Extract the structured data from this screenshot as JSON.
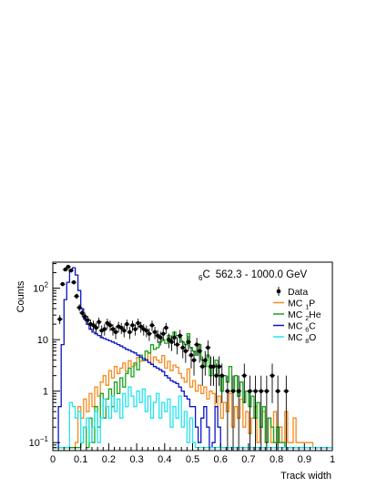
{
  "chart_data": {
    "type": "histogram",
    "title": {
      "z": "6",
      "element": "C",
      "range": "562.3 - 1000.0 GeV"
    },
    "xlabel": "Track width",
    "ylabel": "Counts",
    "xlim": [
      0,
      1
    ],
    "ylim": [
      0.07,
      320
    ],
    "yscale": "log",
    "x_ticks": [
      "0",
      "0.1",
      "0.2",
      "0.3",
      "0.4",
      "0.5",
      "0.6",
      "0.7",
      "0.8",
      "0.9",
      "1"
    ],
    "y_ticks": [
      {
        "value": 0.1,
        "base": "10",
        "exp": "−1"
      },
      {
        "value": 1,
        "base": "1",
        "exp": ""
      },
      {
        "value": 10,
        "base": "10",
        "exp": ""
      },
      {
        "value": 100,
        "base": "10",
        "exp": "2"
      }
    ],
    "legend": {
      "position": "right",
      "entries": [
        {
          "label": "Data",
          "sub": "",
          "el": "",
          "style": "marker"
        },
        {
          "label": "MC ",
          "sub": "1",
          "el": "P",
          "style": "line",
          "color": "#f58a1f"
        },
        {
          "label": "MC ",
          "sub": "2",
          "el": "He",
          "style": "line",
          "color": "#1aa31a"
        },
        {
          "label": "MC ",
          "sub": "6",
          "el": "C",
          "style": "line",
          "color": "#0a14c8"
        },
        {
          "label": "MC ",
          "sub": "8",
          "el": "O",
          "style": "line",
          "color": "#22e5f0"
        }
      ]
    },
    "bin_width": 0.01,
    "series": [
      {
        "name": "Data",
        "kind": "points",
        "color": "#000000",
        "x": [
          0.025,
          0.035,
          0.045,
          0.055,
          0.065,
          0.075,
          0.085,
          0.095,
          0.105,
          0.115,
          0.125,
          0.135,
          0.145,
          0.155,
          0.165,
          0.175,
          0.185,
          0.195,
          0.205,
          0.215,
          0.225,
          0.235,
          0.245,
          0.255,
          0.265,
          0.275,
          0.285,
          0.295,
          0.305,
          0.315,
          0.325,
          0.335,
          0.345,
          0.355,
          0.365,
          0.375,
          0.385,
          0.395,
          0.405,
          0.415,
          0.425,
          0.435,
          0.445,
          0.455,
          0.465,
          0.475,
          0.485,
          0.495,
          0.505,
          0.515,
          0.525,
          0.535,
          0.545,
          0.555,
          0.565,
          0.575,
          0.585,
          0.595,
          0.605,
          0.625,
          0.645,
          0.665,
          0.685,
          0.705,
          0.725,
          0.745,
          0.765,
          0.785,
          0.805,
          0.835
        ],
        "y": [
          25,
          120,
          230,
          260,
          220,
          130,
          70,
          42,
          33,
          28,
          24,
          20,
          19,
          17,
          22,
          15,
          16,
          21,
          19,
          16,
          14,
          18,
          17,
          15,
          20,
          14,
          19,
          16,
          21,
          18,
          16,
          15,
          13,
          19,
          14,
          12,
          11,
          13,
          17,
          10,
          9,
          11,
          8,
          12,
          7,
          6,
          9,
          5,
          4,
          8,
          6,
          3,
          4,
          7,
          3,
          3,
          2,
          3,
          2,
          1,
          1,
          1,
          2,
          1,
          1,
          1,
          1,
          2,
          1,
          1
        ]
      },
      {
        "name": "MC P",
        "kind": "step",
        "color": "#f58a1f",
        "x_start": 0.0,
        "values": [
          0.08,
          0.08,
          0.08,
          0.08,
          0.08,
          0.08,
          0.08,
          0.08,
          0.1,
          0.5,
          0.3,
          0.7,
          0.4,
          0.9,
          0.5,
          1.2,
          0.8,
          1.5,
          2,
          1.3,
          2.5,
          1.8,
          3,
          2.2,
          2.8,
          3.5,
          2.4,
          3.9,
          3,
          3.2,
          4.5,
          3.8,
          3.9,
          4.2,
          5.5,
          3.4,
          4.6,
          4,
          3.6,
          4.9,
          2.8,
          3.8,
          2.5,
          3.2,
          2.9,
          2.2,
          1.8,
          1.5,
          2.7,
          1.2,
          1.6,
          1,
          1.3,
          0.9,
          1.2,
          0.7,
          1,
          0.9,
          0.5,
          0.8,
          0.3,
          0.6,
          0.4,
          0.9,
          0.2,
          0.5,
          0.3,
          0.7,
          0.2,
          0.4,
          0.15,
          0.3,
          0.5,
          0.1,
          0.2,
          0.4,
          0.1,
          0.3,
          0.1,
          0.4,
          0.1,
          0.2,
          0.1,
          0.4,
          0.1,
          0.1,
          0.3,
          0.1,
          0.1,
          0.1,
          0.1,
          0.1,
          0.1,
          0.08,
          0.08,
          0.08,
          0.08,
          0.08,
          0.08,
          0.08
        ]
      },
      {
        "name": "MC He",
        "kind": "step",
        "color": "#1aa31a",
        "x_start": 0.0,
        "values": [
          0.08,
          0.08,
          0.08,
          0.08,
          0.08,
          0.08,
          0.08,
          0.08,
          0.08,
          0.08,
          0.1,
          0.2,
          0.08,
          0.3,
          0.1,
          0.5,
          0.2,
          0.9,
          0.3,
          0.7,
          1.1,
          0.5,
          1.5,
          0.9,
          1.8,
          1.2,
          2.2,
          2.8,
          1.9,
          3.5,
          2.6,
          5,
          4,
          6,
          5.5,
          8,
          6.5,
          7,
          9,
          10,
          8.5,
          12,
          10,
          14,
          12,
          11,
          9,
          8,
          13,
          7,
          6,
          5,
          8,
          4,
          3,
          5,
          2,
          3,
          4,
          2,
          1,
          2,
          1.5,
          3,
          1,
          2,
          0.8,
          1.5,
          0.6,
          1,
          0.5,
          0.8,
          0.3,
          0.6,
          0.2,
          0.5,
          0.1,
          0.3,
          0.2,
          0.1,
          0.2,
          0.1,
          0.1,
          0.08,
          0.08,
          0.08,
          0.08,
          0.08,
          0.08,
          0.08,
          0.08,
          0.08,
          0.08,
          0.08,
          0.08,
          0.08,
          0.08,
          0.08,
          0.08,
          0.08
        ]
      },
      {
        "name": "MC C",
        "kind": "step",
        "color": "#0a14c8",
        "x_start": 0.0,
        "values": [
          0.08,
          0.08,
          0.5,
          8,
          60,
          130,
          230,
          250,
          180,
          90,
          40,
          25,
          20,
          16,
          14,
          13,
          12,
          11,
          10.5,
          10,
          9.5,
          9,
          8.5,
          8,
          7.5,
          7,
          6.5,
          6.2,
          5.8,
          5.5,
          5,
          4.6,
          4.3,
          4,
          3.6,
          3.3,
          3,
          2.8,
          2.6,
          2.4,
          2,
          1.8,
          1.6,
          1.5,
          1.4,
          1.2,
          1,
          0.8,
          0.7,
          0.5,
          0.5,
          0.2,
          0.1,
          0.3,
          0.5,
          0.2,
          0.08,
          0.1,
          0.5,
          0.2,
          0.08,
          0.08,
          0.08,
          0.08,
          0.08,
          0.08,
          0.08,
          0.08,
          0.08,
          0.08,
          0.08,
          0.08,
          0.08,
          0.08,
          0.08,
          0.08,
          0.08,
          0.08,
          0.08,
          0.08,
          0.08,
          0.08,
          0.08,
          0.08,
          0.08,
          0.08,
          0.08,
          0.08,
          0.08,
          0.08,
          0.08,
          0.08,
          0.08,
          0.08,
          0.08,
          0.08,
          0.08,
          0.08,
          0.08,
          0.08
        ]
      },
      {
        "name": "MC O",
        "kind": "step",
        "color": "#22e5f0",
        "x_start": 0.0,
        "values": [
          0.08,
          0.08,
          0.08,
          0.08,
          0.08,
          0.08,
          0.6,
          0.5,
          0.3,
          0.4,
          0.1,
          0.2,
          0.3,
          0.1,
          0.2,
          0.4,
          0.1,
          0.3,
          0.7,
          0.5,
          0.3,
          0.8,
          0.4,
          0.7,
          0.3,
          0.9,
          0.5,
          1.2,
          0.8,
          0.5,
          1,
          0.6,
          1.1,
          0.4,
          0.8,
          0.3,
          0.6,
          0.9,
          0.3,
          0.6,
          0.4,
          0.7,
          0.2,
          0.5,
          0.3,
          0.8,
          0.2,
          0.4,
          0.1,
          0.3,
          0.1,
          0.08,
          0.08,
          0.08,
          0.08,
          0.08,
          0.08,
          0.08,
          0.08,
          0.08,
          0.08,
          0.08,
          0.08,
          0.08,
          0.08,
          0.08,
          0.08,
          0.08,
          0.08,
          0.08,
          0.08,
          0.08,
          0.08,
          0.08,
          0.08,
          0.08,
          0.08,
          0.08,
          0.08,
          0.08,
          0.08,
          0.08,
          0.08,
          0.08,
          0.08,
          0.08,
          0.08,
          0.08,
          0.08,
          0.08,
          0.08,
          0.08,
          0.08,
          0.08,
          0.08,
          0.08,
          0.08,
          0.08,
          0.08,
          0.08
        ]
      }
    ]
  }
}
